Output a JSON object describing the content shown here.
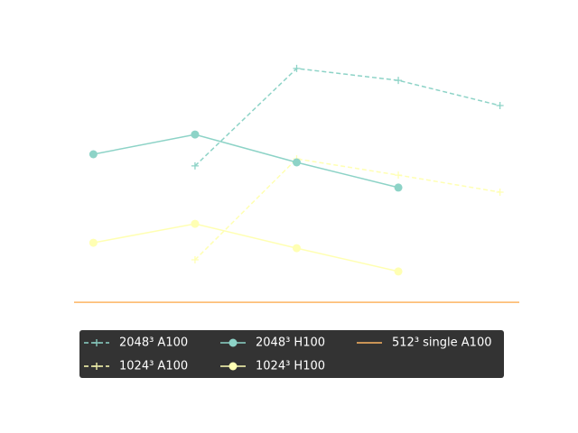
{
  "chart_data": {
    "type": "line",
    "x": [
      0,
      1,
      2,
      3,
      4
    ],
    "xlim": [
      -0.19,
      4.19
    ],
    "ylim": [
      0,
      12
    ],
    "series": [
      {
        "name": "2048³ A100",
        "color": "#8dd3c7",
        "dash": true,
        "marker": "plus",
        "values": [
          null,
          6.87,
          10.47,
          10.03,
          9.1
        ]
      },
      {
        "name": "1024³ A100",
        "color": "#ffffb3",
        "dash": true,
        "marker": "plus",
        "values": [
          null,
          3.4,
          7.13,
          6.53,
          5.9
        ]
      },
      {
        "name": "2048³ H100",
        "color": "#8dd3c7",
        "dash": false,
        "marker": "circle",
        "values": [
          7.3,
          8.03,
          7.0,
          6.07,
          null
        ]
      },
      {
        "name": "1024³ H100",
        "color": "#ffffb3",
        "dash": false,
        "marker": "circle",
        "values": [
          4.03,
          4.73,
          3.83,
          2.97,
          null
        ]
      }
    ],
    "hlines": [
      {
        "name": "512³ single A100",
        "color": "#fdb462",
        "value": 1.83
      }
    ],
    "legend": "lower center"
  }
}
